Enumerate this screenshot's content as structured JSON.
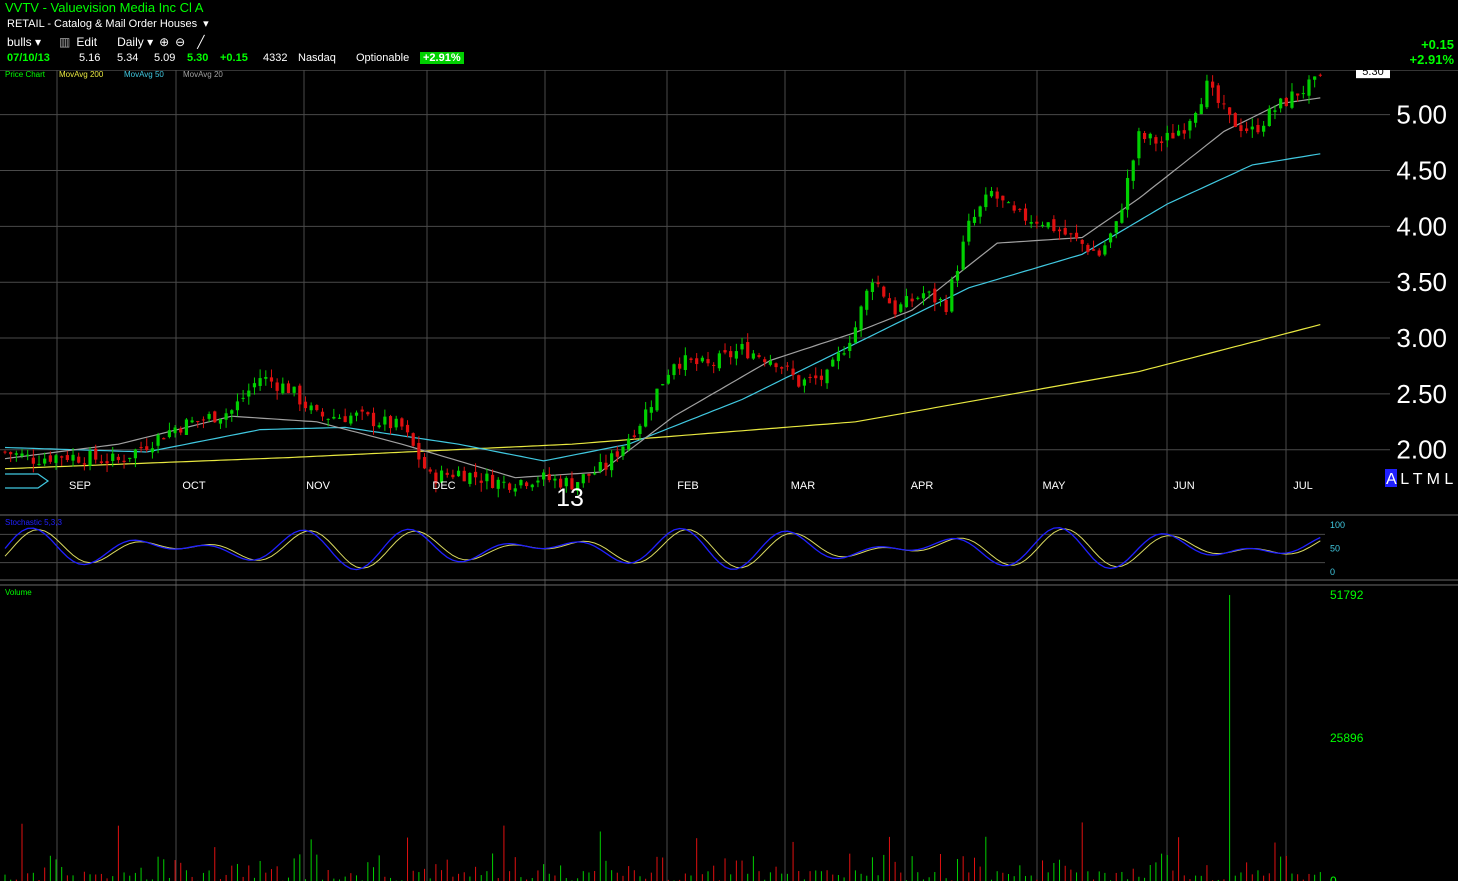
{
  "header": {
    "title": "VVTV - Valuevision Media Inc Cl A",
    "industry": "RETAIL - Catalog & Mail Order Houses",
    "toolbar": {
      "list": "bulls",
      "edit": "Edit",
      "period": "Daily"
    }
  },
  "quote": {
    "date": "07/10/13",
    "open": "5.16",
    "high": "5.34",
    "low": "5.09",
    "last": "5.30",
    "change": "+0.15",
    "volume": "4332",
    "exchange": "Nasdaq",
    "optionable": "Optionable",
    "pct": "+2.91%"
  },
  "right_change": {
    "change": "+0.15",
    "pct": "+2.91%"
  },
  "legend": {
    "chart": "Price Chart",
    "ma200": "MovAvg 200",
    "ma50": "MovAvg 50",
    "ma20": "MovAvg 20"
  },
  "colors": {
    "up": "#00d000",
    "down": "#e01010",
    "ma200": "#e8e840",
    "ma50": "#40c8e0",
    "ma20": "#a0a0a0",
    "stoch_k": "#2020ff",
    "stoch_d": "#d8d860",
    "grid": "#4a4a4a"
  },
  "axis_labels": {
    "year": "13",
    "alt_buttons": "A L T M L",
    "last_price_tag": "5.30"
  },
  "chart_data": [
    {
      "type": "candlestick",
      "title": "Price Chart",
      "x_months": [
        "SEP",
        "OCT",
        "NOV",
        "DEC",
        "FEB",
        "MAR",
        "APR",
        "MAY",
        "JUN",
        "JUL"
      ],
      "y_ticks": [
        "5.00",
        "4.50",
        "4.00",
        "3.50",
        "3.00",
        "2.50",
        "2.00"
      ],
      "ylim": [
        1.55,
        5.4
      ],
      "ohlc_points": [
        [
          0,
          1.98
        ],
        [
          5,
          1.92
        ],
        [
          10,
          1.95
        ],
        [
          20,
          1.9
        ],
        [
          30,
          2.2
        ],
        [
          40,
          2.35
        ],
        [
          45,
          2.65
        ],
        [
          50,
          2.55
        ],
        [
          55,
          2.3
        ],
        [
          62,
          2.3
        ],
        [
          70,
          2.2
        ],
        [
          75,
          1.75
        ],
        [
          80,
          1.8
        ],
        [
          88,
          1.7
        ],
        [
          94,
          1.75
        ],
        [
          100,
          1.7
        ],
        [
          106,
          1.85
        ],
        [
          112,
          2.25
        ],
        [
          118,
          2.8
        ],
        [
          124,
          2.75
        ],
        [
          130,
          2.9
        ],
        [
          136,
          2.8
        ],
        [
          140,
          2.6
        ],
        [
          145,
          2.65
        ],
        [
          150,
          3.1
        ],
        [
          153,
          3.55
        ],
        [
          157,
          3.25
        ],
        [
          162,
          3.4
        ],
        [
          166,
          3.3
        ],
        [
          170,
          4.0
        ],
        [
          174,
          4.3
        ],
        [
          178,
          4.1
        ],
        [
          183,
          4.05
        ],
        [
          188,
          3.9
        ],
        [
          193,
          3.75
        ],
        [
          196,
          4.0
        ],
        [
          200,
          4.8
        ],
        [
          204,
          4.75
        ],
        [
          208,
          4.9
        ],
        [
          212,
          5.25
        ],
        [
          216,
          4.95
        ],
        [
          220,
          4.85
        ],
        [
          224,
          5.05
        ],
        [
          228,
          5.2
        ],
        [
          232,
          5.3
        ]
      ],
      "ma200": [
        [
          0,
          1.83
        ],
        [
          50,
          1.93
        ],
        [
          100,
          2.05
        ],
        [
          150,
          2.25
        ],
        [
          200,
          2.7
        ],
        [
          232,
          3.12
        ]
      ],
      "ma50": [
        [
          0,
          2.02
        ],
        [
          25,
          1.98
        ],
        [
          45,
          2.18
        ],
        [
          60,
          2.2
        ],
        [
          80,
          2.05
        ],
        [
          95,
          1.9
        ],
        [
          110,
          2.05
        ],
        [
          130,
          2.45
        ],
        [
          150,
          2.95
        ],
        [
          170,
          3.45
        ],
        [
          190,
          3.75
        ],
        [
          205,
          4.2
        ],
        [
          220,
          4.55
        ],
        [
          232,
          4.65
        ]
      ],
      "ma20": [
        [
          0,
          1.92
        ],
        [
          20,
          2.05
        ],
        [
          40,
          2.3
        ],
        [
          55,
          2.25
        ],
        [
          70,
          2.05
        ],
        [
          90,
          1.75
        ],
        [
          105,
          1.8
        ],
        [
          118,
          2.3
        ],
        [
          135,
          2.8
        ],
        [
          150,
          3.05
        ],
        [
          160,
          3.25
        ],
        [
          175,
          3.85
        ],
        [
          190,
          3.9
        ],
        [
          200,
          4.25
        ],
        [
          215,
          4.85
        ],
        [
          225,
          5.1
        ],
        [
          232,
          5.15
        ]
      ],
      "last_price": 5.3
    },
    {
      "type": "line",
      "title": "Stochastic 5,3,3",
      "y_ticks": [
        "100",
        "50",
        "0"
      ],
      "ylim": [
        0,
        100
      ]
    },
    {
      "type": "bar",
      "title": "Volume",
      "y_ticks": [
        "51792",
        "25896",
        "0"
      ],
      "ylim": [
        0,
        51792
      ],
      "spike": {
        "index": 0.925,
        "value": 51792
      }
    }
  ]
}
